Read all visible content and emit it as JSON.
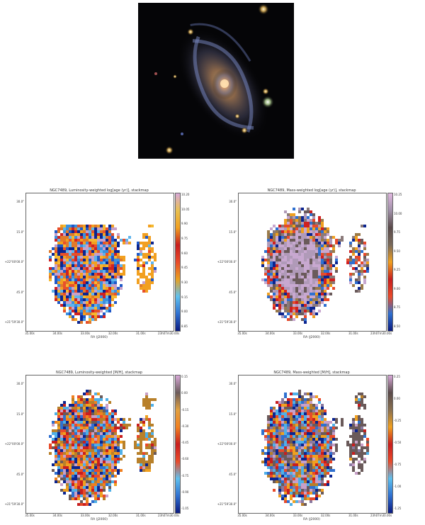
{
  "photo": {
    "name": "galaxy-rgb-image"
  },
  "panels": [
    {
      "id": "p1",
      "title": "NGC7489, Luminosity-weighted log[age (yr)], stackmap",
      "xlabel": "RA (J2000)",
      "yticks": [
        "30.0\"",
        "15.0\"",
        "+22°00'00.0\"",
        "45.0\"",
        "+21°59'30.0\""
      ],
      "xticks": [
        "35.00s",
        "34.00s",
        "33.00s",
        "32.00s",
        "31.00s",
        "23h07m30.00s"
      ],
      "cbar_ticks": [
        "10.20",
        "10.05",
        "9.90",
        "9.75",
        "9.60",
        "9.45",
        "9.30",
        "9.15",
        "9.00",
        "8.85"
      ],
      "palette": "lum-age"
    },
    {
      "id": "p2",
      "title": "NGC7489, Mass-weighted log[age (yr)], stackmap",
      "xlabel": "RA (J2000)",
      "yticks": [
        "30.0\"",
        "15.0\"",
        "+22°00'00.0\"",
        "45.0\"",
        "+21°59'30.0\""
      ],
      "xticks": [
        "35.00s",
        "34.00s",
        "33.00s",
        "32.00s",
        "31.00s",
        "23h07m30.00s"
      ],
      "cbar_ticks": [
        "10.25",
        "10.00",
        "9.75",
        "9.50",
        "9.25",
        "9.00",
        "8.75",
        "8.50"
      ],
      "palette": "mass-age"
    },
    {
      "id": "p3",
      "title": "NGC7489, Luminosity-weighted [M/H], stackmap",
      "xlabel": "RA (J2000)",
      "yticks": [
        "30.0\"",
        "15.0\"",
        "+22°00'00.0\"",
        "45.0\"",
        "+21°59'30.0\""
      ],
      "xticks": [
        "35.00s",
        "34.00s",
        "33.00s",
        "32.00s",
        "31.00s",
        "23h07m30.00s"
      ],
      "cbar_ticks": [
        "0.15",
        "0.00",
        "-0.15",
        "-0.30",
        "-0.45",
        "-0.60",
        "-0.75",
        "-0.90",
        "-1.05"
      ],
      "palette": "lum-mh"
    },
    {
      "id": "p4",
      "title": "NGC7489, Mass-weighted [M/H], stackmap",
      "xlabel": "RA (J2000)",
      "yticks": [
        "30.0\"",
        "15.0\"",
        "+22°00'00.0\"",
        "45.0\"",
        "+21°59'30.0\""
      ],
      "xticks": [
        "35.00s",
        "34.00s",
        "33.00s",
        "32.00s",
        "31.00s",
        "23h07m30.00s"
      ],
      "cbar_ticks": [
        "0.25",
        "0.00",
        "-0.25",
        "-0.50",
        "-0.75",
        "-1.00",
        "-1.25"
      ],
      "palette": "mass-mh"
    }
  ],
  "colors": {
    "cmap": [
      "#1a2a8a",
      "#2f6fd0",
      "#4fb0e8",
      "#e84a2a",
      "#c81e1e",
      "#f0a020",
      "#b87a2a",
      "#5a4a4a",
      "#9a8a7a",
      "#c8a0c8"
    ]
  }
}
